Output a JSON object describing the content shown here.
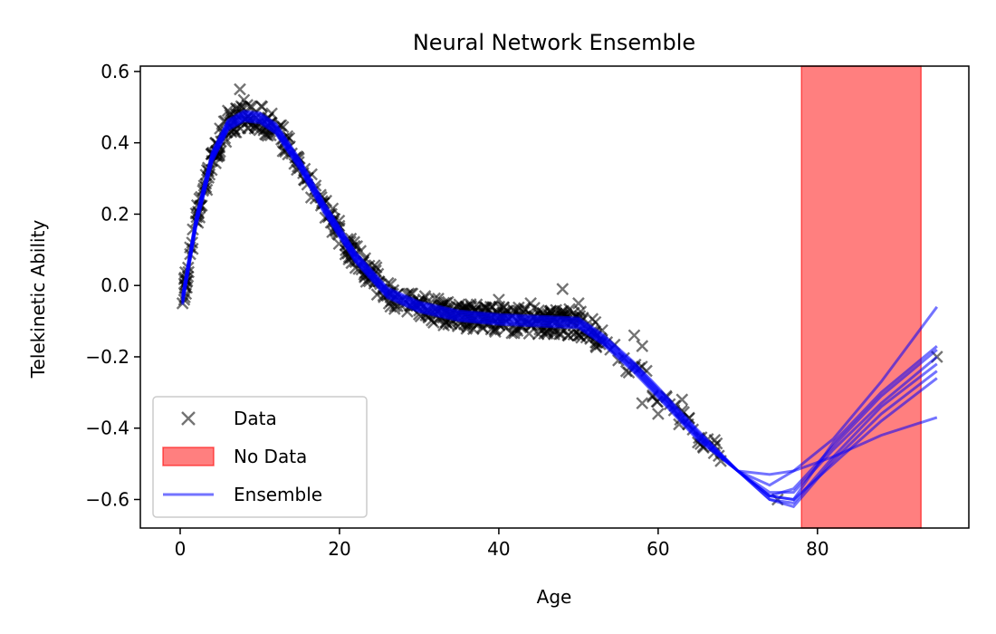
{
  "chart_data": {
    "type": "scatter",
    "title": "Neural Network Ensemble",
    "xlabel": "Age",
    "ylabel": "Telekinetic Ability",
    "xlim": [
      -5,
      99
    ],
    "ylim": [
      -0.68,
      0.615
    ],
    "xticks": [
      0,
      20,
      40,
      60,
      80
    ],
    "yticks": [
      0.6,
      0.4,
      0.2,
      0.0,
      -0.2,
      -0.4,
      -0.6
    ],
    "ytick_labels": [
      "0.6",
      "0.4",
      "0.2",
      "0.0",
      "−0.2",
      "−0.4",
      "−0.6"
    ],
    "xtick_labels": [
      "0",
      "20",
      "40",
      "60",
      "80"
    ],
    "legend_position": "lower-left",
    "legend": [
      {
        "label": "Data",
        "kind": "marker",
        "color": "#000000"
      },
      {
        "label": "No Data",
        "kind": "patch",
        "color": "#ff0000"
      },
      {
        "label": "Ensemble",
        "kind": "line",
        "color": "#0000ff"
      }
    ],
    "no_data_region": {
      "x": [
        78,
        93
      ],
      "color": "#ff0000",
      "alpha": 0.5
    },
    "colors": {
      "data": "#000000",
      "ensemble": "#0000ff",
      "no_data": "#ff0000"
    },
    "series": [
      {
        "name": "Ensemble",
        "kind": "line",
        "x": [
          0.3,
          2,
          4,
          6,
          8,
          10,
          12,
          15,
          18,
          22,
          26,
          30,
          35,
          40,
          45,
          50,
          53,
          57,
          60,
          65,
          70,
          75,
          78,
          82,
          86,
          90,
          95
        ],
        "y": [
          -0.04,
          0.18,
          0.36,
          0.45,
          0.475,
          0.47,
          0.44,
          0.34,
          0.22,
          0.08,
          -0.02,
          -0.06,
          -0.085,
          -0.095,
          -0.1,
          -0.105,
          -0.15,
          -0.23,
          -0.3,
          -0.42,
          -0.52,
          -0.6,
          -0.58,
          -0.47,
          -0.37,
          -0.28,
          -0.16
        ],
        "variants_end": [
          {
            "x": [
              70,
              74,
              77,
              82,
              88,
              95
            ],
            "y": [
              -0.5,
              -0.53,
              -0.52,
              -0.43,
              -0.27,
              -0.06
            ]
          },
          {
            "x": [
              70,
              74,
              77,
              82,
              88,
              95
            ],
            "y": [
              -0.51,
              -0.56,
              -0.52,
              -0.48,
              -0.42,
              -0.37
            ]
          },
          {
            "x": [
              70,
              74,
              77,
              82,
              88,
              95
            ],
            "y": [
              -0.53,
              -0.59,
              -0.6,
              -0.5,
              -0.38,
              -0.26
            ]
          },
          {
            "x": [
              70,
              74,
              77,
              82,
              88,
              95
            ],
            "y": [
              -0.52,
              -0.58,
              -0.58,
              -0.46,
              -0.33,
              -0.2
            ]
          },
          {
            "x": [
              70,
              74,
              77,
              82,
              88,
              95
            ],
            "y": [
              -0.53,
              -0.6,
              -0.61,
              -0.48,
              -0.34,
              -0.22
            ]
          },
          {
            "x": [
              70,
              74,
              77,
              82,
              88,
              95
            ],
            "y": [
              -0.52,
              -0.6,
              -0.62,
              -0.49,
              -0.36,
              -0.24
            ]
          },
          {
            "x": [
              70,
              74,
              77,
              82,
              88,
              95
            ],
            "y": [
              -0.52,
              -0.59,
              -0.57,
              -0.45,
              -0.31,
              -0.18
            ]
          },
          {
            "x": [
              70,
              74,
              77,
              82,
              88,
              95
            ],
            "y": [
              -0.53,
              -0.59,
              -0.6,
              -0.44,
              -0.3,
              -0.17
            ]
          }
        ]
      },
      {
        "name": "Data",
        "kind": "scatter",
        "points": [
          [
            0.3,
            -0.05
          ],
          [
            0.5,
            -0.04
          ],
          [
            1,
            0.05
          ],
          [
            1.5,
            0.12
          ],
          [
            2,
            0.18
          ],
          [
            2.5,
            0.22
          ],
          [
            3,
            0.28
          ],
          [
            3.5,
            0.33
          ],
          [
            4,
            0.37
          ],
          [
            4.5,
            0.4
          ],
          [
            5,
            0.44
          ],
          [
            5.5,
            0.46
          ],
          [
            6,
            0.49
          ],
          [
            6.5,
            0.47
          ],
          [
            7,
            0.48
          ],
          [
            7.5,
            0.55
          ],
          [
            8,
            0.52
          ],
          [
            8.5,
            0.46
          ],
          [
            9,
            0.5
          ],
          [
            9.5,
            0.47
          ],
          [
            10,
            0.46
          ],
          [
            11,
            0.45
          ],
          [
            12,
            0.43
          ],
          [
            13,
            0.4
          ],
          [
            14,
            0.37
          ],
          [
            15,
            0.33
          ],
          [
            16,
            0.3
          ],
          [
            17,
            0.28
          ],
          [
            18,
            0.23
          ],
          [
            19,
            0.2
          ],
          [
            20,
            0.16
          ],
          [
            21,
            0.13
          ],
          [
            22,
            0.09
          ],
          [
            23,
            0.07
          ],
          [
            24,
            0.04
          ],
          [
            25,
            0.01
          ],
          [
            26,
            -0.02
          ],
          [
            27,
            -0.04
          ],
          [
            28,
            -0.05
          ],
          [
            29,
            -0.06
          ],
          [
            30,
            -0.07
          ],
          [
            31,
            -0.07
          ],
          [
            32,
            -0.08
          ],
          [
            33,
            -0.09
          ],
          [
            34,
            -0.08
          ],
          [
            35,
            -0.1
          ],
          [
            36,
            -0.11
          ],
          [
            37,
            -0.07
          ],
          [
            38,
            -0.12
          ],
          [
            39,
            -0.09
          ],
          [
            40,
            -0.04
          ],
          [
            41,
            -0.1
          ],
          [
            42,
            -0.11
          ],
          [
            43,
            -0.09
          ],
          [
            44,
            -0.05
          ],
          [
            45,
            -0.08
          ],
          [
            46,
            -0.11
          ],
          [
            47,
            -0.13
          ],
          [
            48,
            -0.01
          ],
          [
            49,
            -0.1
          ],
          [
            50,
            -0.05
          ],
          [
            51,
            -0.12
          ],
          [
            52,
            -0.13
          ],
          [
            53,
            -0.16
          ],
          [
            54,
            -0.18
          ],
          [
            55,
            -0.21
          ],
          [
            56,
            -0.24
          ],
          [
            57,
            -0.14
          ],
          [
            58,
            -0.17
          ],
          [
            58,
            -0.33
          ],
          [
            60,
            -0.36
          ],
          [
            61,
            -0.31
          ],
          [
            62,
            -0.35
          ],
          [
            63,
            -0.32
          ],
          [
            65,
            -0.44
          ],
          [
            67,
            -0.47
          ],
          [
            75,
            -0.6
          ],
          [
            95,
            -0.2
          ]
        ]
      }
    ]
  }
}
